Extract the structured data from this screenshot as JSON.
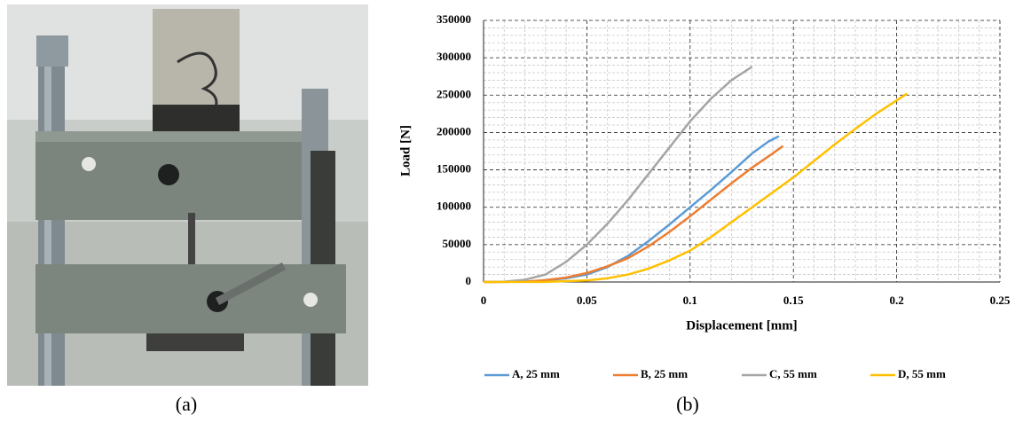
{
  "captions": [
    "(a)",
    "(b)"
  ],
  "chart_data": {
    "type": "line",
    "xlabel": "Displacement [mm]",
    "ylabel": "Load [N]",
    "xlim": [
      0,
      0.25
    ],
    "xticks": [
      0,
      0.05,
      0.1,
      0.15,
      0.2,
      0.25
    ],
    "ylim": [
      0,
      350000
    ],
    "yticks": [
      0,
      50000,
      100000,
      150000,
      200000,
      250000,
      300000,
      350000
    ],
    "grid": true,
    "minor_divisions": 5,
    "legend": "bottom",
    "series": [
      {
        "name": "A, 25 mm",
        "color": "#5b9bd5",
        "x": [
          0,
          0.02,
          0.03,
          0.04,
          0.05,
          0.06,
          0.07,
          0.08,
          0.09,
          0.1,
          0.11,
          0.12,
          0.13,
          0.138,
          0.143
        ],
        "values": [
          0,
          500,
          2000,
          5000,
          10000,
          20000,
          35000,
          55000,
          77000,
          100000,
          123000,
          147000,
          172000,
          188000,
          195000
        ]
      },
      {
        "name": "B, 25 mm",
        "color": "#ed7d31",
        "x": [
          0,
          0.02,
          0.03,
          0.04,
          0.05,
          0.06,
          0.07,
          0.08,
          0.09,
          0.1,
          0.11,
          0.12,
          0.13,
          0.14,
          0.145
        ],
        "values": [
          0,
          500,
          2500,
          6000,
          12000,
          21000,
          32000,
          48000,
          67000,
          88000,
          110000,
          132000,
          153000,
          172000,
          182000
        ]
      },
      {
        "name": "C, 55 mm",
        "color": "#a5a5a5",
        "x": [
          0,
          0.01,
          0.02,
          0.03,
          0.04,
          0.05,
          0.06,
          0.07,
          0.08,
          0.09,
          0.1,
          0.11,
          0.12,
          0.13
        ],
        "values": [
          0,
          500,
          3000,
          10000,
          27000,
          50000,
          78000,
          110000,
          145000,
          180000,
          215000,
          245000,
          270000,
          288000
        ]
      },
      {
        "name": "D, 55 mm",
        "color": "#ffc000",
        "x": [
          0,
          0.03,
          0.05,
          0.06,
          0.07,
          0.08,
          0.09,
          0.1,
          0.11,
          0.12,
          0.13,
          0.14,
          0.15,
          0.16,
          0.17,
          0.18,
          0.19,
          0.2,
          0.205
        ],
        "values": [
          0,
          200,
          2000,
          5000,
          10000,
          18000,
          29000,
          42000,
          60000,
          80000,
          100000,
          120000,
          140000,
          162000,
          184000,
          205000,
          225000,
          243000,
          252000
        ]
      }
    ]
  }
}
